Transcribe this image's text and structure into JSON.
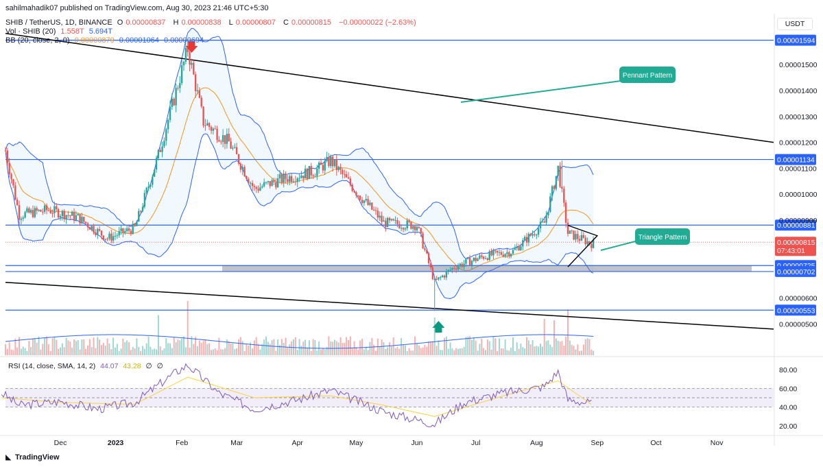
{
  "published": "sahilmahadik07 published on TradingView.com, Aug 30, 2023 21:46 UTC+5:30",
  "symbol": {
    "title": "SHIB / TetherUS, 1D, BINANCE",
    "o_label": "O",
    "o": "0.00000837",
    "h_label": "H",
    "h": "0.00000838",
    "l_label": "L",
    "l": "0.00000807",
    "c_label": "C",
    "c": "0.00000815",
    "change": "−0.00000022 (−2.63%)"
  },
  "volume_legend": {
    "label": "Vol · SHIB (20)",
    "v1": "1.558T",
    "v2": "5.694T"
  },
  "bb_legend": {
    "label": "BB (20, close, 2, 0)",
    "basis": "0.00000879",
    "upper": "0.00001064",
    "lower": "0.00000694"
  },
  "rsi_legend": {
    "label": "RSI (14, close, SMA, 14, 2)",
    "rsi": "44.07",
    "sma": "43.28",
    "z1": "∅",
    "z2": "∅"
  },
  "currency": "USDT",
  "brand": "TradingView",
  "colors": {
    "up": "#26a69a",
    "down": "#ef5350",
    "bb_basis": "#f7931a",
    "bb_band": "#2962ff",
    "level": "#2962ff",
    "trend": "#000000",
    "rsi": "#7e57c2",
    "rsi_ma": "#f7d33d",
    "callout": "#22ab94"
  },
  "chart_data": [
    {
      "type": "candlestick",
      "x_axis_ticks": [
        "Dec",
        "2023",
        "Feb",
        "Mar",
        "Apr",
        "May",
        "Jun",
        "Jul",
        "Aug",
        "Sep",
        "Oct",
        "Nov"
      ],
      "y_axis_ticks": [
        "0.00001500",
        "0.00001400",
        "0.00001300",
        "0.00001200",
        "0.00001100",
        "0.00001000",
        "0.00000900",
        "0.00000600",
        "0.00000500"
      ],
      "ylim": [
        4.4e-06,
        1.63e-05
      ],
      "levels": [
        {
          "value": 1.594e-05,
          "label": "0.00001594"
        },
        {
          "value": 1.134e-05,
          "label": "0.00001134"
        },
        {
          "value": 8.81e-06,
          "label": "0.00000881"
        },
        {
          "value": 7.25e-06,
          "label": "0.00000725"
        },
        {
          "value": 7.02e-06,
          "label": "0.00000702"
        },
        {
          "value": 5.53e-06,
          "label": "0.00000553"
        }
      ],
      "last_price": {
        "value": 8.15e-06,
        "label": "0.00000815",
        "countdown": "07:43:01"
      },
      "annotations": [
        "Pennant Pattern",
        "Triangle Pattern"
      ],
      "price_path": [
        {
          "t": "2022-11-01",
          "p": 1.24e-05
        },
        {
          "t": "2022-11-10",
          "p": 9.2e-06
        },
        {
          "t": "2022-11-25",
          "p": 9.4e-06
        },
        {
          "t": "2022-12-10",
          "p": 9.1e-06
        },
        {
          "t": "2022-12-25",
          "p": 8.3e-06
        },
        {
          "t": "2023-01-08",
          "p": 8.7e-06
        },
        {
          "t": "2023-01-20",
          "p": 1.15e-05
        },
        {
          "t": "2023-02-04",
          "p": 1.56e-05
        },
        {
          "t": "2023-02-12",
          "p": 1.28e-05
        },
        {
          "t": "2023-02-25",
          "p": 1.2e-05
        },
        {
          "t": "2023-03-10",
          "p": 1.02e-05
        },
        {
          "t": "2023-03-25",
          "p": 1.06e-05
        },
        {
          "t": "2023-04-10",
          "p": 1.09e-05
        },
        {
          "t": "2023-04-18",
          "p": 1.13e-05
        },
        {
          "t": "2023-05-01",
          "p": 1.01e-05
        },
        {
          "t": "2023-05-15",
          "p": 8.9e-06
        },
        {
          "t": "2023-06-01",
          "p": 8.8e-06
        },
        {
          "t": "2023-06-10",
          "p": 6.6e-06
        },
        {
          "t": "2023-06-20",
          "p": 7.2e-06
        },
        {
          "t": "2023-07-05",
          "p": 7.6e-06
        },
        {
          "t": "2023-07-20",
          "p": 7.8e-06
        },
        {
          "t": "2023-08-05",
          "p": 8.9e-06
        },
        {
          "t": "2023-08-12",
          "p": 1.1e-05
        },
        {
          "t": "2023-08-17",
          "p": 8.5e-06
        },
        {
          "t": "2023-08-29",
          "p": 8.1e-06
        }
      ]
    },
    {
      "type": "line",
      "name": "RSI",
      "y_axis_ticks": [
        "80.00",
        "60.00",
        "40.00",
        "20.00"
      ],
      "ylim": [
        15,
        90
      ],
      "band": [
        40,
        60
      ],
      "series": [
        {
          "name": "RSI",
          "t": [
            "2022-11-01",
            "2022-11-10",
            "2022-12-01",
            "2022-12-20",
            "2023-01-08",
            "2023-01-28",
            "2023-02-04",
            "2023-02-20",
            "2023-03-10",
            "2023-04-01",
            "2023-04-18",
            "2023-05-15",
            "2023-06-10",
            "2023-06-25",
            "2023-07-15",
            "2023-08-05",
            "2023-08-12",
            "2023-08-17",
            "2023-08-29"
          ],
          "values": [
            55,
            42,
            46,
            38,
            45,
            76,
            85,
            55,
            38,
            48,
            58,
            35,
            22,
            45,
            55,
            62,
            78,
            48,
            44
          ]
        },
        {
          "name": "RSI-based MA",
          "t": [
            "2022-11-01",
            "2022-12-01",
            "2023-01-08",
            "2023-02-04",
            "2023-03-10",
            "2023-04-18",
            "2023-05-15",
            "2023-06-10",
            "2023-07-15",
            "2023-08-12",
            "2023-08-29"
          ],
          "values": [
            50,
            45,
            43,
            72,
            50,
            52,
            42,
            30,
            52,
            68,
            43
          ]
        }
      ]
    }
  ]
}
